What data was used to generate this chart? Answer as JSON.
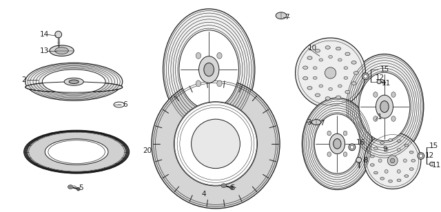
{
  "bg_color": "#ffffff",
  "line_color": "#1a1a1a",
  "fig_width": 6.4,
  "fig_height": 3.08,
  "dpi": 100
}
